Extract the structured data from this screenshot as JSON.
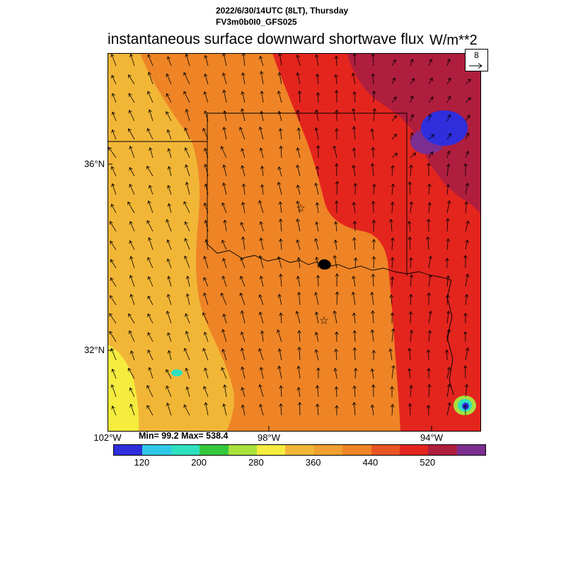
{
  "header": {
    "datetime_line": "2022/6/30/14UTC (8LT), Thursday",
    "model_line": "FV3m0b0I0_GFS025",
    "title": "instantaneous surface downward shortwave flux",
    "units": "W/m**2"
  },
  "map": {
    "marker_symbol": "☆"
  },
  "axes": {
    "y_ticks": [
      {
        "label": "36°N"
      },
      {
        "label": "32°N"
      }
    ],
    "x_ticks": [
      {
        "label": "102°W"
      },
      {
        "label": "98°W"
      },
      {
        "label": "94°W"
      }
    ]
  },
  "wind_reference": {
    "value": "8"
  },
  "palette": {
    "blue": "#2E2EDC",
    "cyan": "#2FC8E8",
    "teal": "#2EE0C0",
    "green": "#35C83C",
    "yellow_green": "#A8E03C",
    "yellow": "#F5EC3E",
    "amber": "#F2B637",
    "light_orange": "#F0A030",
    "orange": "#EE8426",
    "red_orange": "#EA5424",
    "red": "#E3251E",
    "dark_red": "#B01E3E",
    "purple": "#7C2E90",
    "black": "#000000"
  },
  "chart_data": {
    "type": "heatmap",
    "title": "instantaneous surface downward shortwave flux",
    "units": "W/m**2",
    "valid_time": "2022/6/30/14UTC (8LT), Thursday",
    "model": "FV3m0b0I0_GFS025",
    "min": 99.2,
    "max": 538.4,
    "min_max_label": "Min= 99.2 Max= 538.4",
    "lon_ticks": [
      "102°W",
      "98°W",
      "94°W"
    ],
    "lat_ticks": [
      "36°N",
      "32°N"
    ],
    "lon_range": [
      "102°W",
      "93°W"
    ],
    "lat_range": [
      "30.3°N",
      "38.4°N"
    ],
    "colorbar": {
      "tick_labels": [
        "120",
        "200",
        "280",
        "360",
        "440",
        "520"
      ],
      "boundary_values": [
        80,
        120,
        160,
        200,
        240,
        280,
        320,
        360,
        400,
        440,
        480,
        520,
        560,
        600
      ],
      "colors": [
        "#2E2EDC",
        "#2FC8E8",
        "#2EE0C0",
        "#35C83C",
        "#A8E03C",
        "#F5EC3E",
        "#F2B637",
        "#F0A030",
        "#EE8426",
        "#EA5424",
        "#E3251E",
        "#B01E3E",
        "#7C2E90"
      ]
    },
    "field_summary": [
      {
        "area": "west band",
        "approx_flux": "280-340"
      },
      {
        "area": "far southwest corner",
        "approx_flux": "240-280"
      },
      {
        "area": "center",
        "approx_flux": "360-400"
      },
      {
        "area": "east column and upper center",
        "approx_flux": "440-480"
      },
      {
        "area": "northeast",
        "approx_flux": "480-540"
      },
      {
        "area": "northeast low patch",
        "approx_flux": "100-160"
      },
      {
        "area": "southeast corner spot",
        "approx_flux": "120-240"
      }
    ],
    "wind": {
      "reference_value": 8,
      "spacing": 26,
      "length": 16,
      "angle_west": -28,
      "angle_east": 8
    }
  }
}
